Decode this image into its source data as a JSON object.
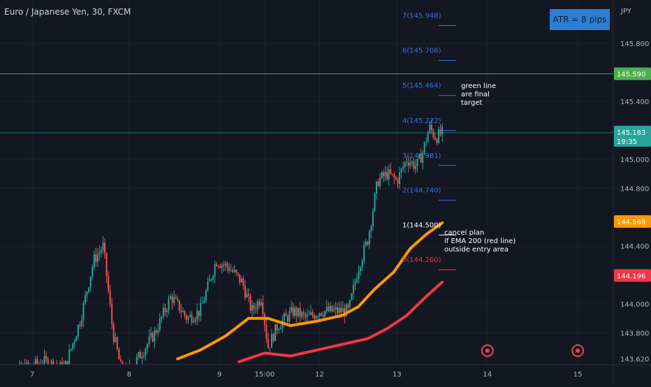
{
  "header": {
    "symbol_title": "Euro / Japanese Yen, 30, FXCM"
  },
  "atr_badge": {
    "label": "ATR = 8 pips",
    "color": "#2a7fd4"
  },
  "notes": {
    "target_note": "green line\nare final\ntarget",
    "cancel_note": "cancel plan\nif EMA 200 (red line)\noutside entry area"
  },
  "chart_data": {
    "type": "candlestick",
    "currency": "JPY",
    "y_axis": {
      "ticks": [
        145.8,
        145.4,
        145.0,
        144.8,
        144.4,
        144.0,
        143.8,
        143.62
      ],
      "tick_labels": [
        "145.800",
        "145.400",
        "145.000",
        "144.800",
        "144.400",
        "144.000",
        "143.800",
        "143.620"
      ],
      "ylim": [
        143.58,
        146.1
      ]
    },
    "x_axis": {
      "tick_labels": [
        "7",
        "8",
        "9",
        "15:00",
        "12",
        "13",
        "14",
        "15"
      ],
      "xlim": [
        0,
        9.5
      ],
      "tick_positions": [
        0.5,
        2.0,
        3.4,
        4.1,
        4.95,
        6.15,
        7.55,
        8.95
      ]
    },
    "price_labels": [
      {
        "name": "target",
        "value": "145.590",
        "color": "#4caf50"
      },
      {
        "name": "current",
        "value": "145.183",
        "sub": "19:35",
        "color": "#26a69a"
      },
      {
        "name": "ema50",
        "value": "144.569",
        "color": "#ff9800"
      },
      {
        "name": "ema200",
        "value": "144.196",
        "color": "#f23645"
      }
    ],
    "levels": [
      {
        "label": "7(145.948)",
        "value": 145.948,
        "color": "#3d6fe0"
      },
      {
        "label": "6(145.706)",
        "value": 145.706,
        "color": "#3d6fe0"
      },
      {
        "label": "5(145.464)",
        "value": 145.464,
        "color": "#3d6fe0"
      },
      {
        "label": "4(145.222)",
        "value": 145.222,
        "color": "#3d6fe0"
      },
      {
        "label": "3(144.981)",
        "value": 144.981,
        "color": "#3d6fe0"
      },
      {
        "label": "2(144.740)",
        "value": 144.74,
        "color": "#3d6fe0"
      },
      {
        "label": "1(144.500)",
        "value": 144.5,
        "color": "#ffffff"
      },
      {
        "label": "0(144.260)",
        "value": 144.26,
        "color": "#f23645"
      }
    ],
    "lines": {
      "target_line": 145.59,
      "current_price": 145.183
    },
    "series": [
      {
        "name": "EMA 50",
        "color": "#ff9800",
        "points": [
          [
            2.75,
            143.62
          ],
          [
            3.1,
            143.68
          ],
          [
            3.5,
            143.78
          ],
          [
            3.85,
            143.9
          ],
          [
            4.15,
            143.9
          ],
          [
            4.5,
            143.85
          ],
          [
            4.9,
            143.88
          ],
          [
            5.3,
            143.92
          ],
          [
            5.55,
            143.98
          ],
          [
            5.8,
            144.1
          ],
          [
            6.1,
            144.22
          ],
          [
            6.35,
            144.38
          ],
          [
            6.6,
            144.48
          ],
          [
            6.85,
            144.56
          ]
        ]
      },
      {
        "name": "EMA 200",
        "color": "#f23645",
        "points": [
          [
            3.7,
            143.6
          ],
          [
            4.1,
            143.66
          ],
          [
            4.5,
            143.64
          ],
          [
            4.9,
            143.68
          ],
          [
            5.3,
            143.72
          ],
          [
            5.7,
            143.76
          ],
          [
            6.0,
            143.83
          ],
          [
            6.3,
            143.92
          ],
          [
            6.6,
            144.05
          ],
          [
            6.85,
            144.15
          ]
        ]
      }
    ],
    "candle_path": [
      [
        0.0,
        143.5
      ],
      [
        0.7,
        143.6
      ],
      [
        1.0,
        143.55
      ],
      [
        1.25,
        143.9
      ],
      [
        1.45,
        144.3
      ],
      [
        1.6,
        144.4
      ],
      [
        1.75,
        143.8
      ],
      [
        1.9,
        143.5
      ],
      [
        2.1,
        143.6
      ],
      [
        2.4,
        143.8
      ],
      [
        2.65,
        144.05
      ],
      [
        2.9,
        143.9
      ],
      [
        3.1,
        143.95
      ],
      [
        3.35,
        144.3
      ],
      [
        3.55,
        144.25
      ],
      [
        3.75,
        144.15
      ],
      [
        3.9,
        143.95
      ],
      [
        4.05,
        144.05
      ],
      [
        4.15,
        143.7
      ],
      [
        4.3,
        143.85
      ],
      [
        4.55,
        143.95
      ],
      [
        4.75,
        143.9
      ],
      [
        4.95,
        143.95
      ],
      [
        5.15,
        143.95
      ],
      [
        5.4,
        143.95
      ],
      [
        5.55,
        144.25
      ],
      [
        5.7,
        144.45
      ],
      [
        5.85,
        144.85
      ],
      [
        6.0,
        144.9
      ],
      [
        6.15,
        144.85
      ],
      [
        6.3,
        145.0
      ],
      [
        6.45,
        144.95
      ],
      [
        6.55,
        145.05
      ],
      [
        6.65,
        145.22
      ],
      [
        6.75,
        145.15
      ],
      [
        6.85,
        145.18
      ]
    ],
    "markers": [
      7.55,
      8.95
    ]
  }
}
